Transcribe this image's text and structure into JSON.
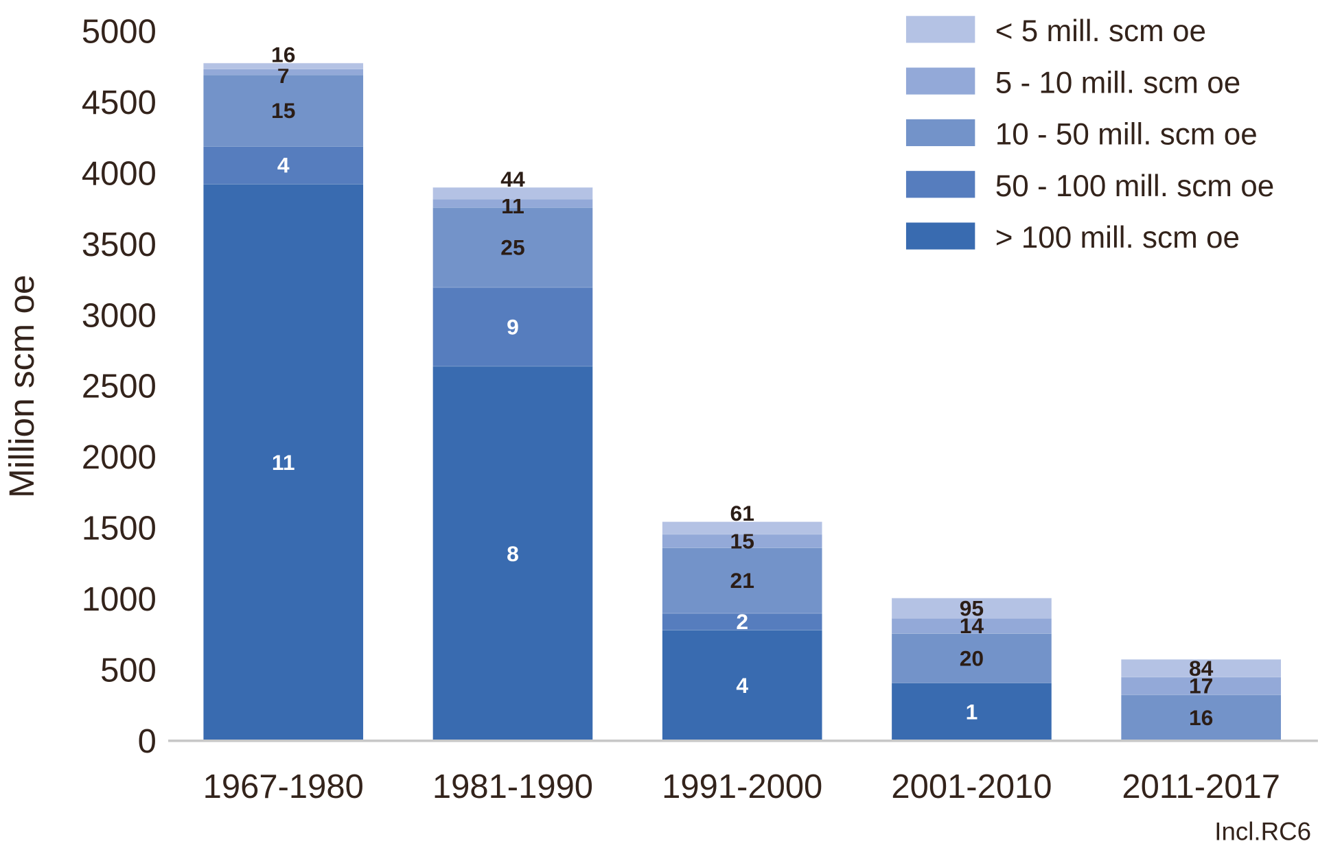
{
  "chart_data": {
    "type": "bar",
    "stacked": true,
    "title": "",
    "xlabel": "",
    "ylabel": "Million scm oe",
    "ylim": [
      0,
      5000
    ],
    "yticks": [
      0,
      500,
      1000,
      1500,
      2000,
      2500,
      3000,
      3500,
      4000,
      4500,
      5000
    ],
    "grid": false,
    "legend_position": "top-right",
    "note": "Incl.RC6",
    "categories": [
      "1967-1980",
      "1981-1990",
      "1991-2000",
      "2001-2010",
      "2011-2017"
    ],
    "series": [
      {
        "name": "> 100 mill. scm oe",
        "color": "#396bb0",
        "label_color": "#ffffff",
        "values": [
          3923,
          2639,
          781,
          408,
          0
        ],
        "counts": [
          11,
          8,
          4,
          1,
          null
        ]
      },
      {
        "name": "50 - 100 mill. scm oe",
        "color": "#567dbe",
        "label_color": "#ffffff",
        "values": [
          266,
          556,
          118,
          0,
          0
        ],
        "counts": [
          4,
          9,
          2,
          null,
          null
        ]
      },
      {
        "name": "10 - 50 mill. scm oe",
        "color": "#7393c9",
        "label_color": "#2b1d16",
        "values": [
          503,
          562,
          462,
          349,
          325
        ],
        "counts": [
          15,
          25,
          21,
          20,
          16
        ]
      },
      {
        "name": "5 - 10 mill. scm oe",
        "color": "#93a9d8",
        "label_color": "#2b1d16",
        "values": [
          42,
          60,
          95,
          107,
          125
        ],
        "counts": [
          7,
          11,
          15,
          14,
          17
        ]
      },
      {
        "name": "< 5 mill. scm oe",
        "color": "#b4c2e4",
        "label_color": "#2b1d16",
        "values": [
          41,
          82,
          88,
          142,
          124
        ],
        "counts": [
          16,
          44,
          61,
          95,
          84
        ]
      }
    ]
  }
}
